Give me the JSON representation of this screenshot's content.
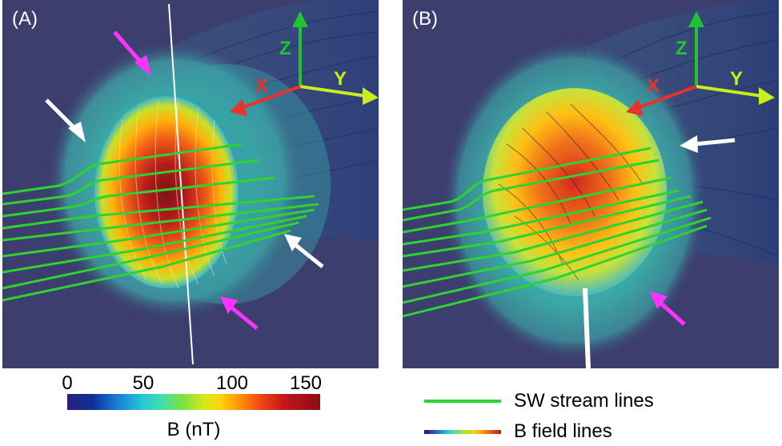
{
  "panels": [
    {
      "label": "(A)"
    },
    {
      "label": "(B)"
    }
  ],
  "axes": {
    "x": "X",
    "y": "Y",
    "z": "Z"
  },
  "colorbar": {
    "ticks": [
      "0",
      "50",
      "100",
      "150"
    ],
    "title": "B (nT)"
  },
  "legend": {
    "items": [
      {
        "label": "SW stream lines",
        "color": "#2fd32f"
      },
      {
        "label": "B field lines"
      }
    ]
  },
  "colors": {
    "arrow_white": "#ffffff",
    "arrow_magenta": "#ff33ff",
    "axis_x": "#e8322a",
    "axis_y": "#c8ee1c",
    "axis_z": "#22c232"
  }
}
